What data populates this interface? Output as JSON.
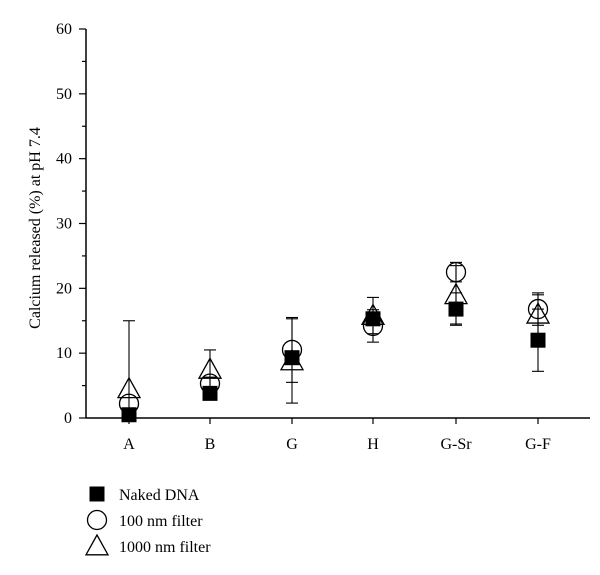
{
  "chart_data": {
    "type": "scatter",
    "title": "",
    "xlabel": "",
    "ylabel": "Calcium released (%) at pH 7.4",
    "ylim": [
      0,
      60
    ],
    "yticks": [
      0,
      10,
      20,
      30,
      40,
      50,
      60
    ],
    "categories": [
      "A",
      "B",
      "G",
      "H",
      "G-Sr",
      "G-F"
    ],
    "series": [
      {
        "name": "Naked DNA",
        "marker": "filled-square",
        "values": [
          0.5,
          3.8,
          9.3,
          15.3,
          16.8,
          12.0
        ],
        "error": [
          null,
          null,
          null,
          null,
          2.5,
          4.8
        ]
      },
      {
        "name": "100 nm filter",
        "marker": "open-circle",
        "values": [
          2.2,
          5.3,
          10.5,
          14.2,
          22.5,
          16.8
        ],
        "error": [
          null,
          1.0,
          5.0,
          2.5,
          1.5,
          2.5
        ]
      },
      {
        "name": "1000 nm filter",
        "marker": "open-triangle",
        "values": [
          4.5,
          7.5,
          8.8,
          15.8,
          19.0,
          16.0
        ],
        "error": [
          10.5,
          3.0,
          6.5,
          2.8,
          4.5,
          3.0
        ]
      }
    ],
    "legend_position": "bottom-left",
    "grid": false
  }
}
